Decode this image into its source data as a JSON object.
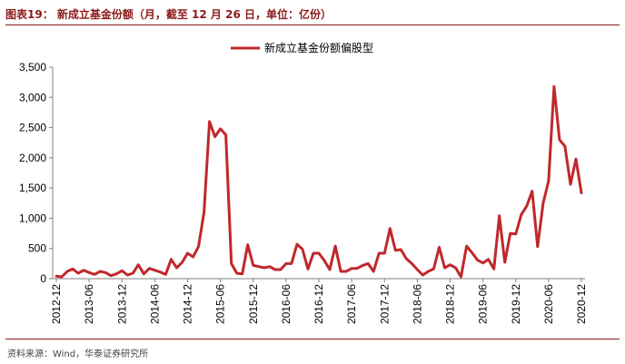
{
  "header": {
    "title": "图表19：  新成立基金份额（月，截至 12 月 26 日，单位：亿份）"
  },
  "footer": {
    "source": "资料来源：Wind，华泰证券研究所"
  },
  "colors": {
    "series": "#c0282b",
    "accent": "#8b1a1a",
    "axis": "#808080"
  },
  "chart_data": {
    "type": "line",
    "title": "",
    "xlabel": "",
    "ylabel": "",
    "ylim": [
      0,
      3500
    ],
    "yticks": [
      "0",
      "500",
      "1,000",
      "1,500",
      "2,000",
      "2,500",
      "3,000",
      "3,500"
    ],
    "legend": {
      "placement": "top-center"
    },
    "grid": false,
    "x_ticks": [
      "2012-12",
      "2013-06",
      "2013-12",
      "2014-06",
      "2014-12",
      "2015-06",
      "2015-12",
      "2016-06",
      "2016-12",
      "2017-06",
      "2017-12",
      "2018-06",
      "2018-12",
      "2019-06",
      "2019-12",
      "2020-06",
      "2020-12"
    ],
    "x": [
      "2012-12",
      "2013-01",
      "2013-02",
      "2013-03",
      "2013-04",
      "2013-05",
      "2013-06",
      "2013-07",
      "2013-08",
      "2013-09",
      "2013-10",
      "2013-11",
      "2013-12",
      "2014-01",
      "2014-02",
      "2014-03",
      "2014-04",
      "2014-05",
      "2014-06",
      "2014-07",
      "2014-08",
      "2014-09",
      "2014-10",
      "2014-11",
      "2014-12",
      "2015-01",
      "2015-02",
      "2015-03",
      "2015-04",
      "2015-05",
      "2015-06",
      "2015-07",
      "2015-08",
      "2015-09",
      "2015-10",
      "2015-11",
      "2015-12",
      "2016-01",
      "2016-02",
      "2016-03",
      "2016-04",
      "2016-05",
      "2016-06",
      "2016-07",
      "2016-08",
      "2016-09",
      "2016-10",
      "2016-11",
      "2016-12",
      "2017-01",
      "2017-02",
      "2017-03",
      "2017-04",
      "2017-05",
      "2017-06",
      "2017-07",
      "2017-08",
      "2017-09",
      "2017-10",
      "2017-11",
      "2017-12",
      "2018-01",
      "2018-02",
      "2018-03",
      "2018-04",
      "2018-05",
      "2018-06",
      "2018-07",
      "2018-08",
      "2018-09",
      "2018-10",
      "2018-11",
      "2018-12",
      "2019-01",
      "2019-02",
      "2019-03",
      "2019-04",
      "2019-05",
      "2019-06",
      "2019-07",
      "2019-08",
      "2019-09",
      "2019-10",
      "2019-11",
      "2019-12",
      "2020-01",
      "2020-02",
      "2020-03",
      "2020-04",
      "2020-05",
      "2020-06",
      "2020-07",
      "2020-08",
      "2020-09",
      "2020-10",
      "2020-11",
      "2020-12"
    ],
    "series": [
      {
        "name": "新成立基金份额偏股型",
        "values": [
          40,
          30,
          120,
          160,
          90,
          140,
          100,
          70,
          120,
          100,
          50,
          80,
          130,
          60,
          90,
          230,
          80,
          170,
          140,
          110,
          70,
          320,
          180,
          270,
          420,
          360,
          530,
          1100,
          2600,
          2350,
          2480,
          2380,
          250,
          90,
          80,
          560,
          220,
          200,
          180,
          200,
          150,
          150,
          250,
          250,
          570,
          490,
          160,
          420,
          420,
          300,
          150,
          540,
          120,
          120,
          170,
          170,
          220,
          250,
          120,
          420,
          420,
          830,
          470,
          480,
          330,
          250,
          150,
          60,
          120,
          160,
          520,
          180,
          230,
          180,
          30,
          540,
          430,
          310,
          260,
          320,
          160,
          1040,
          270,
          750,
          740,
          1060,
          1200,
          1450,
          530,
          1250,
          1620,
          3180,
          2300,
          2190,
          1560,
          1980,
          1420
        ]
      }
    ]
  }
}
